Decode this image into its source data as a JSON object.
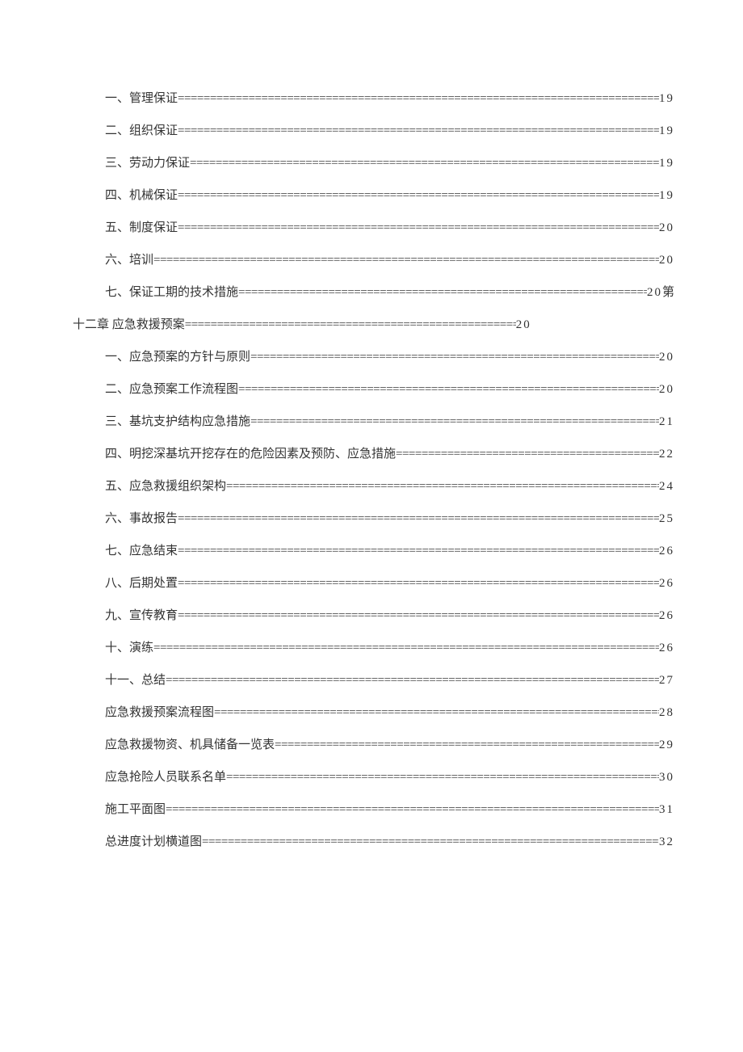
{
  "text_color": "#333333",
  "background_color": "#ffffff",
  "font_family": "SimSun",
  "base_fontsize": 15,
  "line_spacing": 25,
  "fill_char": "=",
  "entries": [
    {
      "label": "一、管理保证",
      "page": "19",
      "indent": true
    },
    {
      "label": "二、组织保证",
      "page": "19",
      "indent": true
    },
    {
      "label": "三、劳动力保证",
      "page": "19",
      "indent": true
    },
    {
      "label": "四、机械保证",
      "page": "19",
      "indent": true
    },
    {
      "label": "五、制度保证",
      "page": "20",
      "indent": true
    },
    {
      "label": "六、培训",
      "page": "20",
      "indent": true
    },
    {
      "label": "七、保证工期的技术措施",
      "page": "20",
      "indent": true,
      "trail": " 第"
    }
  ],
  "chapter": {
    "label": "十二章   应急救援预案",
    "page": "20"
  },
  "entries2": [
    {
      "label": "一、应急预案的方针与原则",
      "page": "20",
      "indent": true
    },
    {
      "label": "二、应急预案工作流程图",
      "page": "20",
      "indent": true
    },
    {
      "label": "三、基坑支护结构应急措施",
      "page": "21",
      "indent": true
    },
    {
      "label": "四、明挖深基坑开挖存在的危险因素及预防、应急措施",
      "page": "22",
      "indent": true
    },
    {
      "label": "五、应急救援组织架构",
      "page": "24",
      "indent": true
    },
    {
      "label": "六、事故报告",
      "page": "25",
      "indent": true
    },
    {
      "label": "七、应急结束",
      "page": "26",
      "indent": true
    },
    {
      "label": "八、后期处置",
      "page": "26",
      "indent": true
    },
    {
      "label": "九、宣传教育",
      "page": "26",
      "indent": true
    },
    {
      "label": "十、演练",
      "page": "26",
      "indent": true
    },
    {
      "label": "十一、总结",
      "page": "27",
      "indent": true
    },
    {
      "label": "应急救援预案流程图",
      "page": "28",
      "indent": true
    },
    {
      "label": "应急救援物资、机具储备一览表",
      "page": "29",
      "indent": true
    },
    {
      "label": "应急抢险人员联系名单",
      "page": "30",
      "indent": true
    },
    {
      "label": "施工平面图",
      "page": "31",
      "indent": true
    },
    {
      "label": "总进度计划横道图",
      "page": "32",
      "indent": true
    }
  ]
}
